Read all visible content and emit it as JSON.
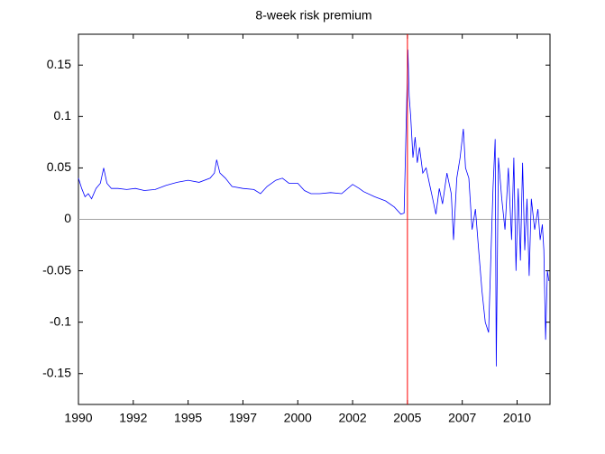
{
  "chart_data": {
    "type": "line",
    "title": "8-week risk premium",
    "x": [
      1990,
      1990.15,
      1990.3,
      1990.45,
      1990.6,
      1990.8,
      1991,
      1991.15,
      1991.3,
      1991.5,
      1991.8,
      1992.2,
      1992.6,
      1993,
      1993.5,
      1994,
      1994.5,
      1995,
      1995.5,
      1996,
      1996.2,
      1996.3,
      1996.45,
      1996.7,
      1997,
      1997.5,
      1998,
      1998.3,
      1998.6,
      1999,
      1999.3,
      1999.6,
      2000,
      2000.3,
      2000.6,
      2001,
      2001.5,
      2002,
      2002.5,
      2002.8,
      2003,
      2003.5,
      2004,
      2004.4,
      2004.7,
      2004.85,
      2005.02,
      2005.08,
      2005.15,
      2005.25,
      2005.35,
      2005.45,
      2005.55,
      2005.7,
      2005.85,
      2006,
      2006.15,
      2006.3,
      2006.45,
      2006.6,
      2006.8,
      2007,
      2007.1,
      2007.25,
      2007.4,
      2007.55,
      2007.65,
      2007.8,
      2007.95,
      2008.1,
      2008.25,
      2008.4,
      2008.55,
      2008.7,
      2008.8,
      2008.9,
      2009.0,
      2009.05,
      2009.15,
      2009.3,
      2009.45,
      2009.6,
      2009.75,
      2009.85,
      2009.95,
      2010.05,
      2010.15,
      2010.25,
      2010.35,
      2010.45,
      2010.55,
      2010.65,
      2010.8,
      2010.95,
      2011.05,
      2011.15,
      2011.22,
      2011.3,
      2011.38,
      2011.45
    ],
    "series": [
      {
        "name": "8-week risk premium",
        "color": "#0000ff",
        "values": [
          0.04,
          0.03,
          0.022,
          0.025,
          0.02,
          0.03,
          0.035,
          0.05,
          0.035,
          0.03,
          0.03,
          0.029,
          0.03,
          0.028,
          0.029,
          0.033,
          0.036,
          0.038,
          0.036,
          0.04,
          0.045,
          0.058,
          0.045,
          0.04,
          0.032,
          0.03,
          0.029,
          0.025,
          0.032,
          0.038,
          0.04,
          0.035,
          0.035,
          0.028,
          0.025,
          0.025,
          0.026,
          0.025,
          0.034,
          0.03,
          0.027,
          0.022,
          0.018,
          0.012,
          0.005,
          0.006,
          0.165,
          0.12,
          0.1,
          0.06,
          0.08,
          0.055,
          0.07,
          0.045,
          0.05,
          0.035,
          0.02,
          0.005,
          0.03,
          0.015,
          0.045,
          0.025,
          -0.02,
          0.04,
          0.06,
          0.088,
          0.05,
          0.04,
          -0.01,
          0.01,
          -0.03,
          -0.07,
          -0.1,
          -0.11,
          -0.04,
          0.03,
          0.078,
          -0.143,
          0.06,
          0.02,
          -0.01,
          0.05,
          -0.02,
          0.06,
          -0.05,
          0.03,
          -0.04,
          0.055,
          -0.03,
          0.02,
          -0.055,
          0.02,
          -0.01,
          0.01,
          -0.02,
          -0.005,
          -0.03,
          -0.117,
          -0.05,
          -0.06
        ]
      }
    ],
    "xlim": [
      1990,
      2011.5
    ],
    "ylim": [
      -0.18,
      0.18
    ],
    "xticks": [
      {
        "value": 1990,
        "label": "1990"
      },
      {
        "value": 1992.5,
        "label": "1992"
      },
      {
        "value": 1995,
        "label": "1995"
      },
      {
        "value": 1997.5,
        "label": "1997"
      },
      {
        "value": 2000,
        "label": "2000"
      },
      {
        "value": 2002.5,
        "label": "2002"
      },
      {
        "value": 2005,
        "label": "2005"
      },
      {
        "value": 2007.5,
        "label": "2007"
      },
      {
        "value": 2010,
        "label": "2010"
      }
    ],
    "yticks": [
      -0.15,
      -0.1,
      -0.05,
      0,
      0.05,
      0.1,
      0.15
    ],
    "hline": 0,
    "hline_color": "#a0a0a0",
    "vline": 2005,
    "vline_color": "#ff0000"
  }
}
